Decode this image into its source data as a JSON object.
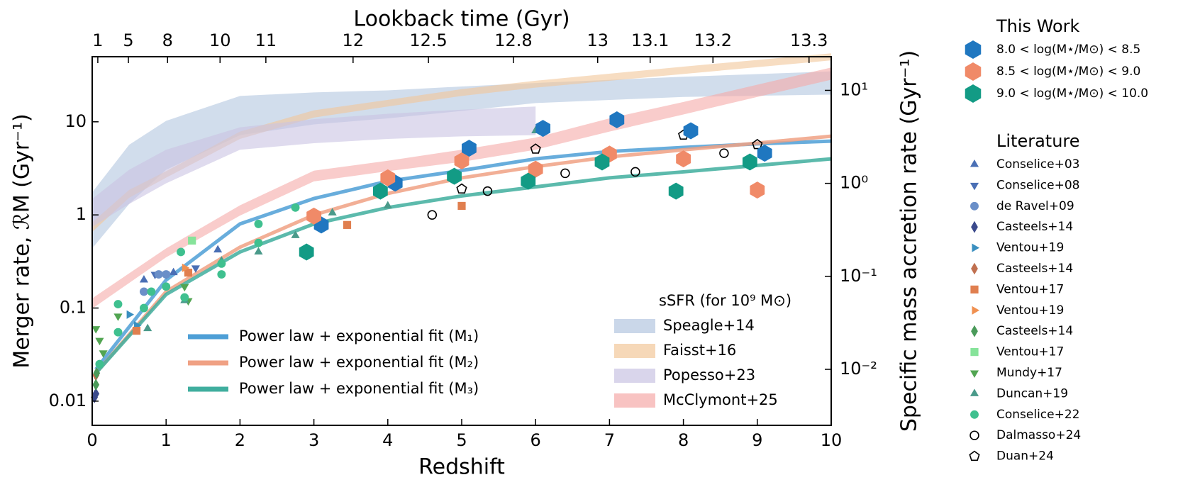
{
  "chart_data": {
    "type": "scatter",
    "xlabel": "Redshift",
    "ylabel": "Merger rate, ℛM (Gyr⁻¹)",
    "y2label": "Specific mass accretion rate (Gyr⁻¹)",
    "x2label": "Lookback time (Gyr)",
    "xlim": [
      0,
      10
    ],
    "xticks": [
      0,
      1,
      2,
      3,
      4,
      5,
      6,
      7,
      8,
      9,
      10
    ],
    "yscale": "log",
    "ylim": [
      0.0055,
      50
    ],
    "yticks": [
      0.01,
      0.1,
      1,
      10
    ],
    "y2lim": [
      0.0025,
      23
    ],
    "y2ticks": [
      {
        "value": 0.01,
        "label": "10⁻²"
      },
      {
        "value": 0.1,
        "label": "10⁻¹"
      },
      {
        "value": 1,
        "label": "10⁰"
      },
      {
        "value": 10,
        "label": "10¹"
      }
    ],
    "x2ticks": [
      {
        "value": 0.076,
        "label": "1"
      },
      {
        "value": 0.49,
        "label": "5"
      },
      {
        "value": 1.02,
        "label": "8"
      },
      {
        "value": 1.73,
        "label": "10"
      },
      {
        "value": 2.35,
        "label": "11"
      },
      {
        "value": 3.53,
        "label": "12"
      },
      {
        "value": 4.55,
        "label": "12.5"
      },
      {
        "value": 5.7,
        "label": "12.8"
      },
      {
        "value": 6.84,
        "label": "13"
      },
      {
        "value": 7.55,
        "label": "13.1"
      },
      {
        "value": 8.4,
        "label": "13.2"
      },
      {
        "value": 9.7,
        "label": "13.3"
      }
    ],
    "ssfr": {
      "title": "sSFR (for 10⁹ M⊙)",
      "series": [
        {
          "name": "Speagle+14",
          "color": "#b3c6e0",
          "axis": "y2",
          "x": [
            0,
            0.5,
            1,
            2,
            3,
            4,
            5,
            6,
            8,
            10
          ],
          "lower": [
            0.2,
            0.6,
            1.4,
            3.3,
            4.3,
            5,
            6,
            7.3,
            8.5,
            9
          ],
          "upper": [
            0.8,
            2.6,
            4.7,
            8.7,
            9.5,
            10,
            11,
            12,
            14,
            16
          ]
        },
        {
          "name": "Faisst+16",
          "color": "#f2c79a",
          "axis": "y2",
          "x": [
            0,
            0.5,
            1,
            2,
            3,
            4,
            5,
            6,
            8,
            10
          ],
          "lower": [
            0.3,
            0.7,
            1.15,
            3.0,
            5.1,
            6.7,
            8.7,
            10.7,
            15,
            21
          ],
          "upper": [
            0.38,
            0.85,
            1.35,
            3.6,
            6.1,
            7.9,
            10.3,
            12.7,
            18,
            25
          ]
        },
        {
          "name": "Popesso+23",
          "color": "#c9c3e3",
          "axis": "y2",
          "x": [
            0,
            0.5,
            1,
            2,
            3,
            4,
            5,
            6
          ],
          "lower": [
            0.34,
            0.6,
            1.0,
            2.3,
            2.7,
            3,
            3.2,
            3.3
          ],
          "upper": [
            0.68,
            1.4,
            2.3,
            4,
            4.9,
            5.6,
            6.2,
            6.7
          ]
        },
        {
          "name": "McClymont+25",
          "color": "#f5aaa8",
          "axis": "y2",
          "x": [
            0,
            1,
            2,
            3,
            4,
            5,
            6,
            7,
            8,
            9,
            10
          ],
          "lower": [
            0.045,
            0.16,
            0.45,
            1.05,
            1.35,
            1.7,
            2.3,
            3.6,
            5.5,
            8.5,
            13
          ],
          "upper": [
            0.058,
            0.2,
            0.58,
            1.37,
            1.75,
            2.3,
            3.1,
            5,
            7.5,
            11.5,
            17.6
          ]
        }
      ]
    },
    "fits": [
      {
        "name": "Power law + exponential fit (M₁)",
        "color": "#4e9fd6",
        "x": [
          0.05,
          1,
          2,
          3,
          4,
          5,
          6,
          7,
          8,
          9,
          10
        ],
        "values": [
          0.022,
          0.2,
          0.8,
          1.5,
          2.3,
          3,
          4,
          4.8,
          5.3,
          5.8,
          6.2
        ]
      },
      {
        "name": "Power law + exponential fit (M₂)",
        "color": "#f0a184",
        "x": [
          0.05,
          1,
          2,
          3,
          4,
          5,
          6,
          7,
          8,
          9,
          10
        ],
        "values": [
          0.02,
          0.15,
          0.45,
          1.0,
          1.7,
          2.5,
          3.3,
          4.2,
          5,
          5.9,
          7
        ]
      },
      {
        "name": "Power law + exponential fit (M₃)",
        "color": "#3fae9e",
        "x": [
          0.05,
          1,
          2,
          3,
          4,
          5,
          6,
          7,
          8,
          9,
          10
        ],
        "values": [
          0.02,
          0.14,
          0.4,
          0.8,
          1.2,
          1.6,
          2.0,
          2.5,
          2.9,
          3.4,
          4.0
        ]
      }
    ],
    "literature": {
      "title": "Literature",
      "series": [
        {
          "name": "Conselice+03",
          "color": "#4a6fb5",
          "marker": "triangle-up",
          "x": [
            0.7,
            1.1,
            1.7
          ],
          "values": [
            0.2,
            0.24,
            0.42
          ]
        },
        {
          "name": "Conselice+08",
          "color": "#4a6fb5",
          "marker": "triangle-down",
          "x": [
            0.85,
            1.0,
            1.4
          ],
          "values": [
            0.23,
            0.23,
            0.27
          ]
        },
        {
          "name": "de Ravel+09",
          "color": "#6a8fc8",
          "marker": "circle",
          "x": [
            0.7,
            0.9,
            1.0
          ],
          "values": [
            0.15,
            0.23,
            0.23
          ]
        },
        {
          "name": "Casteels+14",
          "color": "#3b4a8c",
          "marker": "diamond",
          "x": [
            0.03,
            0.05
          ],
          "values": [
            0.011,
            0.012
          ]
        },
        {
          "name": "Ventou+19",
          "color": "#3a8fc0",
          "marker": "triangle-right",
          "x": [
            0.5,
            0.6
          ],
          "values": [
            0.085,
            0.065
          ]
        },
        {
          "name": "Casteels+14",
          "color": "#c07050",
          "marker": "diamond",
          "x": [
            0.05
          ],
          "values": [
            0.019
          ]
        },
        {
          "name": "Ventou+17",
          "color": "#e07f4f",
          "marker": "square",
          "x": [
            0.6,
            1.3,
            3.45,
            5.0
          ],
          "values": [
            0.057,
            0.24,
            0.78,
            1.25
          ]
        },
        {
          "name": "Ventou+19",
          "color": "#f09050",
          "marker": "triangle-right",
          "x": [
            1.25
          ],
          "values": [
            0.27
          ]
        },
        {
          "name": "Casteels+14",
          "color": "#4a9a5a",
          "marker": "diamond",
          "x": [
            0.05,
            0.06
          ],
          "values": [
            0.015,
            0.02
          ]
        },
        {
          "name": "Ventou+17",
          "color": "#86e39a",
          "marker": "square",
          "x": [
            1.35
          ],
          "values": [
            0.53
          ]
        },
        {
          "name": "Mundy+17",
          "color": "#52a552",
          "marker": "triangle-down",
          "x": [
            0.05,
            0.1,
            0.15,
            0.35,
            1.25,
            1.3
          ],
          "values": [
            0.06,
            0.045,
            0.033,
            0.082,
            0.17,
            0.12
          ]
        },
        {
          "name": "Duncan+19",
          "color": "#4a9a8a",
          "marker": "triangle-up",
          "x": [
            0.75,
            1.25,
            1.75,
            2.25,
            2.75,
            3.25,
            4.0,
            6.0
          ],
          "values": [
            0.06,
            0.12,
            0.32,
            0.4,
            0.6,
            1.05,
            1.25,
            8
          ]
        },
        {
          "name": "Conselice+22",
          "color": "#3fc08f",
          "marker": "circle",
          "x": [
            0.1,
            0.35,
            0.35,
            0.7,
            0.8,
            1.0,
            1.2,
            1.25,
            1.75,
            1.75,
            2.25,
            2.25,
            2.75
          ],
          "values": [
            0.025,
            0.055,
            0.11,
            0.1,
            0.15,
            0.17,
            0.4,
            0.13,
            0.23,
            0.3,
            0.5,
            0.8,
            1.2
          ]
        },
        {
          "name": "Dalmasso+24",
          "color": "#000000",
          "marker": "open-circle",
          "x": [
            4.6,
            5.35,
            6.4,
            7.35,
            8.55
          ],
          "values": [
            1.0,
            1.8,
            2.8,
            2.9,
            4.6
          ]
        },
        {
          "name": "Duan+24",
          "color": "#000000",
          "marker": "open-pentagon",
          "x": [
            5.0,
            6.0,
            8.0,
            9.0
          ],
          "values": [
            1.9,
            5.1,
            7.2,
            5.7
          ]
        }
      ]
    },
    "this_work": {
      "title": "This Work",
      "series": [
        {
          "name": "8.0 < log(M⋆/M⊙) < 8.5",
          "color": "#1f77c0",
          "marker": "hexagon",
          "x": [
            3.1,
            4.1,
            5.1,
            6.1,
            7.1,
            8.1,
            9.1
          ],
          "values": [
            0.78,
            2.2,
            5.2,
            8.5,
            10.5,
            8,
            4.6
          ]
        },
        {
          "name": "8.5 < log(M⋆/M⊙) < 9.0",
          "color": "#f08a68",
          "marker": "hexagon",
          "x": [
            3.0,
            4.0,
            5.0,
            6.0,
            7.0,
            8.0,
            9.0
          ],
          "values": [
            0.97,
            2.5,
            3.8,
            3.1,
            4.5,
            4,
            1.85
          ]
        },
        {
          "name": "9.0 < log(M⋆/M⊙) < 10.0",
          "color": "#139b85",
          "marker": "hexagon",
          "x": [
            2.9,
            3.9,
            4.9,
            5.9,
            6.9,
            7.9,
            8.9
          ],
          "values": [
            0.4,
            1.8,
            2.6,
            2.3,
            3.7,
            1.8,
            3.7
          ]
        }
      ]
    }
  }
}
